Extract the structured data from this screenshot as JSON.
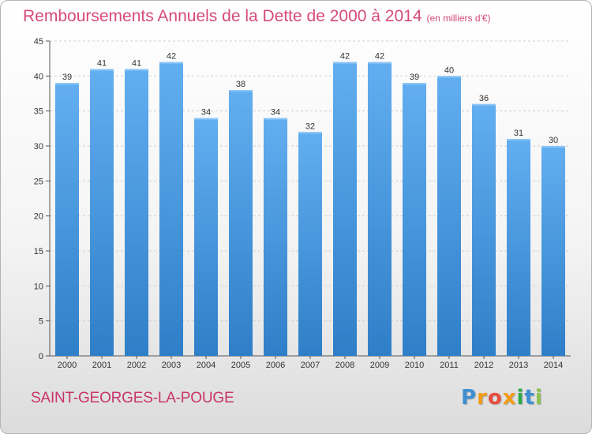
{
  "chart_data": {
    "type": "bar",
    "title": "Remboursements Annuels de la Dette de 2000 à 2014",
    "subtitle": "(en milliers d'€)",
    "categories": [
      "2000",
      "2001",
      "2002",
      "2003",
      "2004",
      "2005",
      "2006",
      "2007",
      "2008",
      "2009",
      "2010",
      "2011",
      "2012",
      "2013",
      "2014"
    ],
    "values": [
      39,
      41,
      41,
      42,
      34,
      38,
      34,
      32,
      42,
      42,
      39,
      40,
      36,
      31,
      30
    ],
    "ylim": [
      0,
      45
    ],
    "yticks": [
      0,
      5,
      10,
      15,
      20,
      25,
      30,
      35,
      40,
      45
    ],
    "xlabel": "",
    "ylabel": "",
    "grid": true,
    "bar_color": "#4a9be0"
  },
  "footer": {
    "city": "SAINT-GEORGES-LA-POUGE",
    "brand": [
      "P",
      "r",
      "o",
      "x",
      "i",
      "t",
      "i"
    ],
    "brand_colors": [
      "#3d8fd1",
      "#f39c12",
      "#e84c3d",
      "#f39c12",
      "#2eaa4a",
      "#3d8fd1",
      "#8bc34a"
    ]
  },
  "colors": {
    "title": "#d64a7a",
    "city": "#c8346a"
  }
}
